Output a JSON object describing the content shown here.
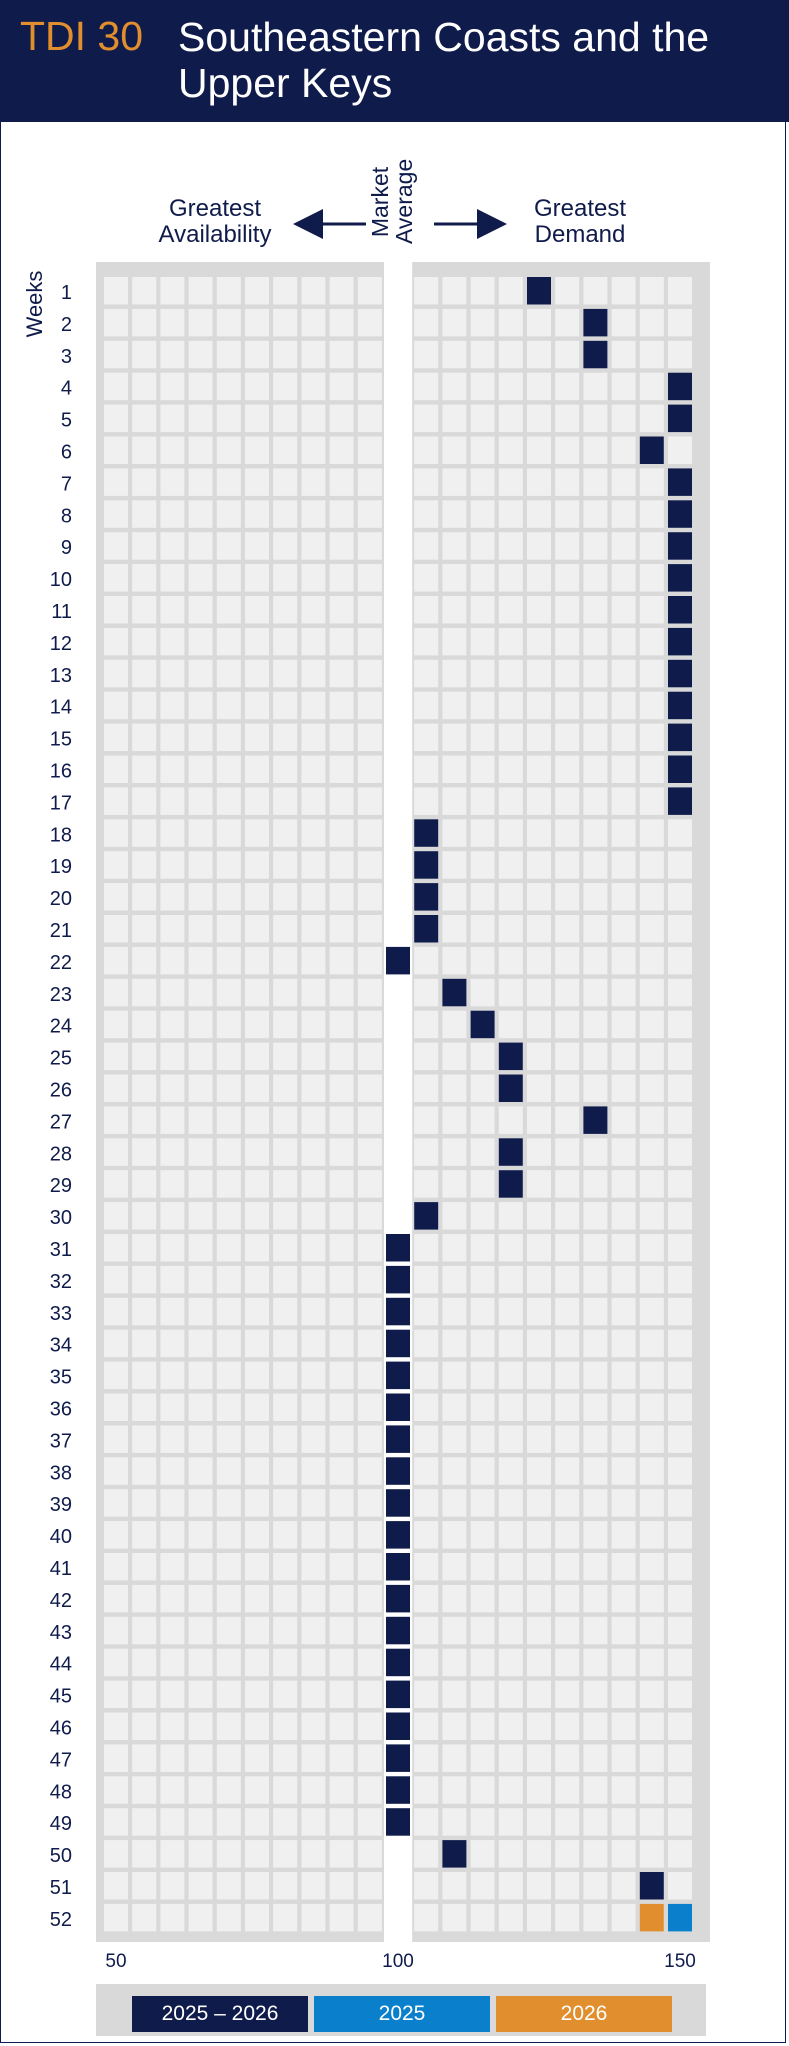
{
  "header": {
    "code": "TDI 30",
    "title": "Southeastern Coasts and the Upper Keys"
  },
  "labels": {
    "left": "Greatest Availability",
    "center": "Market Average",
    "right": "Greatest Demand",
    "weeks": "Weeks"
  },
  "colors": {
    "background_grid": "#d9d9d9",
    "cell": "#f0f0f0",
    "navy": "#0f1b4b",
    "blue": "#0a7fcc",
    "orange": "#e08e2e"
  },
  "chart_data": {
    "type": "heatmap",
    "x_ticks": [
      50,
      100,
      150
    ],
    "x_range": [
      50,
      150
    ],
    "bucket_size": 5,
    "market_average": 100,
    "weeks": [
      1,
      2,
      3,
      4,
      5,
      6,
      7,
      8,
      9,
      10,
      11,
      12,
      13,
      14,
      15,
      16,
      17,
      18,
      19,
      20,
      21,
      22,
      23,
      24,
      25,
      26,
      27,
      28,
      29,
      30,
      31,
      32,
      33,
      34,
      35,
      36,
      37,
      38,
      39,
      40,
      41,
      42,
      43,
      44,
      45,
      46,
      47,
      48,
      49,
      50,
      51,
      52
    ],
    "series": [
      {
        "name": "2025 – 2026",
        "color": "#0f1b4b",
        "values": [
          125,
          135,
          135,
          150,
          150,
          145,
          150,
          150,
          150,
          150,
          150,
          150,
          150,
          150,
          150,
          150,
          150,
          105,
          105,
          105,
          105,
          100,
          110,
          115,
          120,
          120,
          135,
          120,
          120,
          105,
          100,
          100,
          100,
          100,
          100,
          100,
          100,
          100,
          100,
          100,
          100,
          100,
          100,
          100,
          100,
          100,
          100,
          100,
          100,
          110,
          145,
          null
        ]
      },
      {
        "name": "2025",
        "color": "#0a7fcc",
        "values": [
          null,
          null,
          null,
          null,
          null,
          null,
          null,
          null,
          null,
          null,
          null,
          null,
          null,
          null,
          null,
          null,
          null,
          null,
          null,
          null,
          null,
          null,
          null,
          null,
          null,
          null,
          null,
          null,
          null,
          null,
          null,
          null,
          null,
          null,
          null,
          null,
          null,
          null,
          null,
          null,
          null,
          null,
          null,
          null,
          null,
          null,
          null,
          null,
          null,
          null,
          null,
          150
        ]
      },
      {
        "name": "2026",
        "color": "#e08e2e",
        "values": [
          null,
          null,
          null,
          null,
          null,
          null,
          null,
          null,
          null,
          null,
          null,
          null,
          null,
          null,
          null,
          null,
          null,
          null,
          null,
          null,
          null,
          null,
          null,
          null,
          null,
          null,
          null,
          null,
          null,
          null,
          null,
          null,
          null,
          null,
          null,
          null,
          null,
          null,
          null,
          null,
          null,
          null,
          null,
          null,
          null,
          null,
          null,
          null,
          null,
          null,
          null,
          145
        ]
      }
    ]
  },
  "legend": [
    {
      "label": "2025 – 2026",
      "color": "#0f1b4b"
    },
    {
      "label": "2025",
      "color": "#0a7fcc"
    },
    {
      "label": "2026",
      "color": "#e08e2e"
    }
  ]
}
